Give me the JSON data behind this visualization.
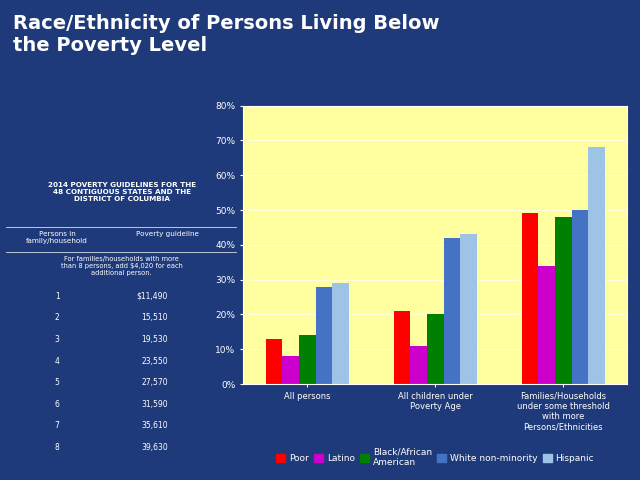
{
  "title": "Race/Ethnicity of Persons Living Below\nthe Poverty Level",
  "title_color": "#FFFFFF",
  "title_fontsize": 14,
  "background_color": "#1F3A7A",
  "plot_bg_color": "#FFFFA0",
  "categories": [
    "All persons",
    "All children under\nPoverty Age",
    "Families/Households\nunder some threshold\nwith more\nPersons/Ethnicities"
  ],
  "series": [
    {
      "label": "Poor",
      "color": "#FF0000",
      "values": [
        13,
        21,
        49
      ]
    },
    {
      "label": "Latino",
      "color": "#CC00CC",
      "values": [
        8,
        11,
        34
      ]
    },
    {
      "label": "Black/African\nAmerican",
      "color": "#008000",
      "values": [
        14,
        20,
        48
      ]
    },
    {
      "label": "White non-minority",
      "color": "#4472C4",
      "values": [
        28,
        42,
        50
      ]
    },
    {
      "label": "Hispanic",
      "color": "#9DC3E6",
      "values": [
        29,
        43,
        68
      ]
    }
  ],
  "ylim": [
    0,
    80
  ],
  "yticks": [
    0,
    10,
    20,
    30,
    40,
    50,
    60,
    70,
    80
  ],
  "ytick_labels": [
    "0%",
    "10%",
    "20%",
    "30%",
    "40%",
    "50%",
    "60%",
    "70%",
    "80%"
  ],
  "grid": true,
  "legend_fontsize": 6.5,
  "tick_color": "#FFFFFF",
  "table_title": "2014 POVERTY GUIDELINES FOR THE\n48 CONTIGUOUS STATES AND THE\nDISTRICT OF COLUMBIA",
  "col_header_1": "Persons in\nfamily/household",
  "col_header_2": "Poverty guideline",
  "table_note": "For families/households with more\nthan 8 persons, add $4,020 for each\nadditional person.",
  "persons": [
    1,
    2,
    3,
    4,
    5,
    6,
    7,
    8
  ],
  "guidelines": [
    "$11,490",
    "15,510",
    "19,530",
    "23,550",
    "27,570",
    "31,590",
    "35,610",
    "39,630"
  ]
}
